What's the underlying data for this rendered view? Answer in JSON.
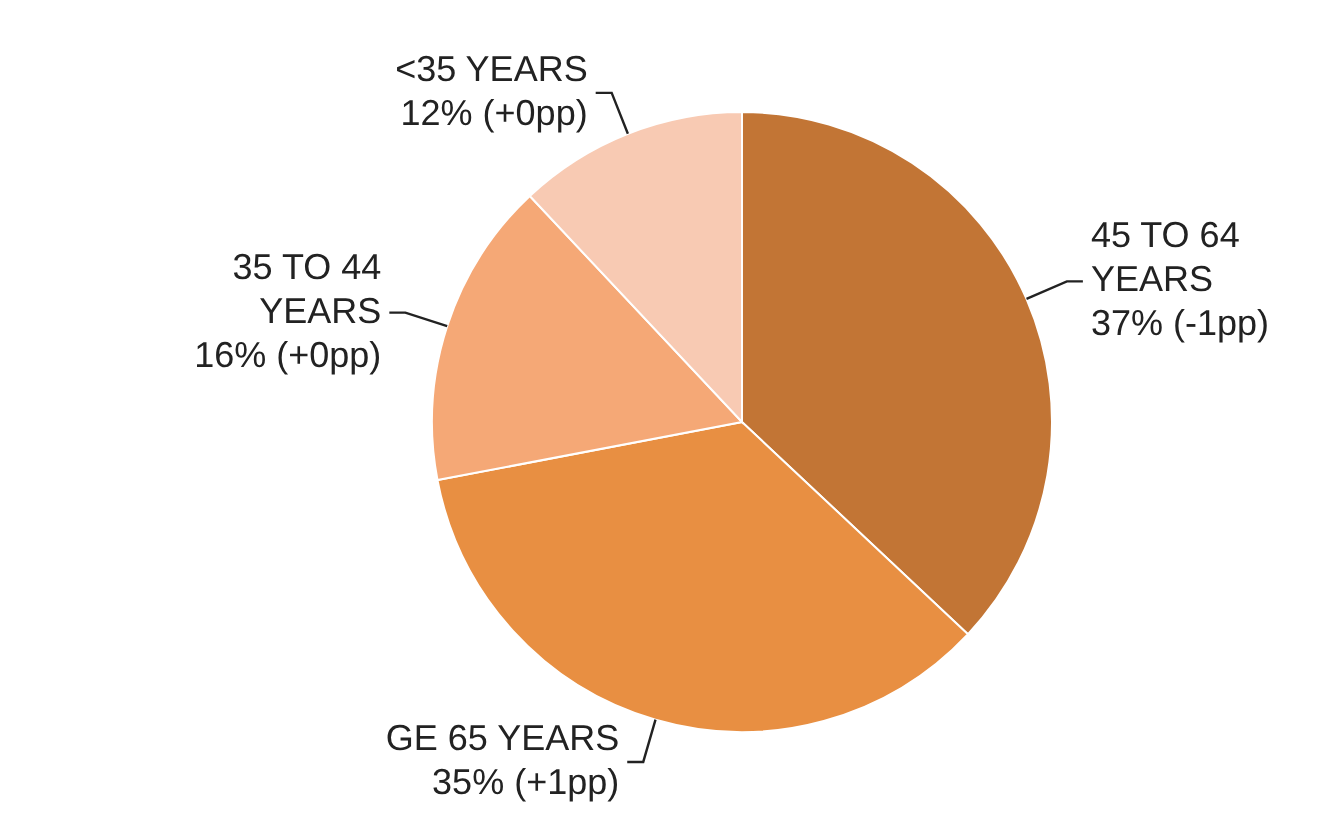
{
  "chart_data": {
    "type": "pie",
    "categories": [
      "45 TO 64 YEARS",
      "GE 65 YEARS",
      "35 TO 44 YEARS",
      "<35 YEARS"
    ],
    "values": [
      37,
      35,
      16,
      12
    ],
    "value_labels": [
      "37% (-1pp)",
      "35% (+1pp)",
      "16% (+0pp)",
      "12% (+0pp)"
    ],
    "colors": [
      "#c27535",
      "#e88f42",
      "#f5a876",
      "#f8cab3"
    ],
    "legend": false
  }
}
